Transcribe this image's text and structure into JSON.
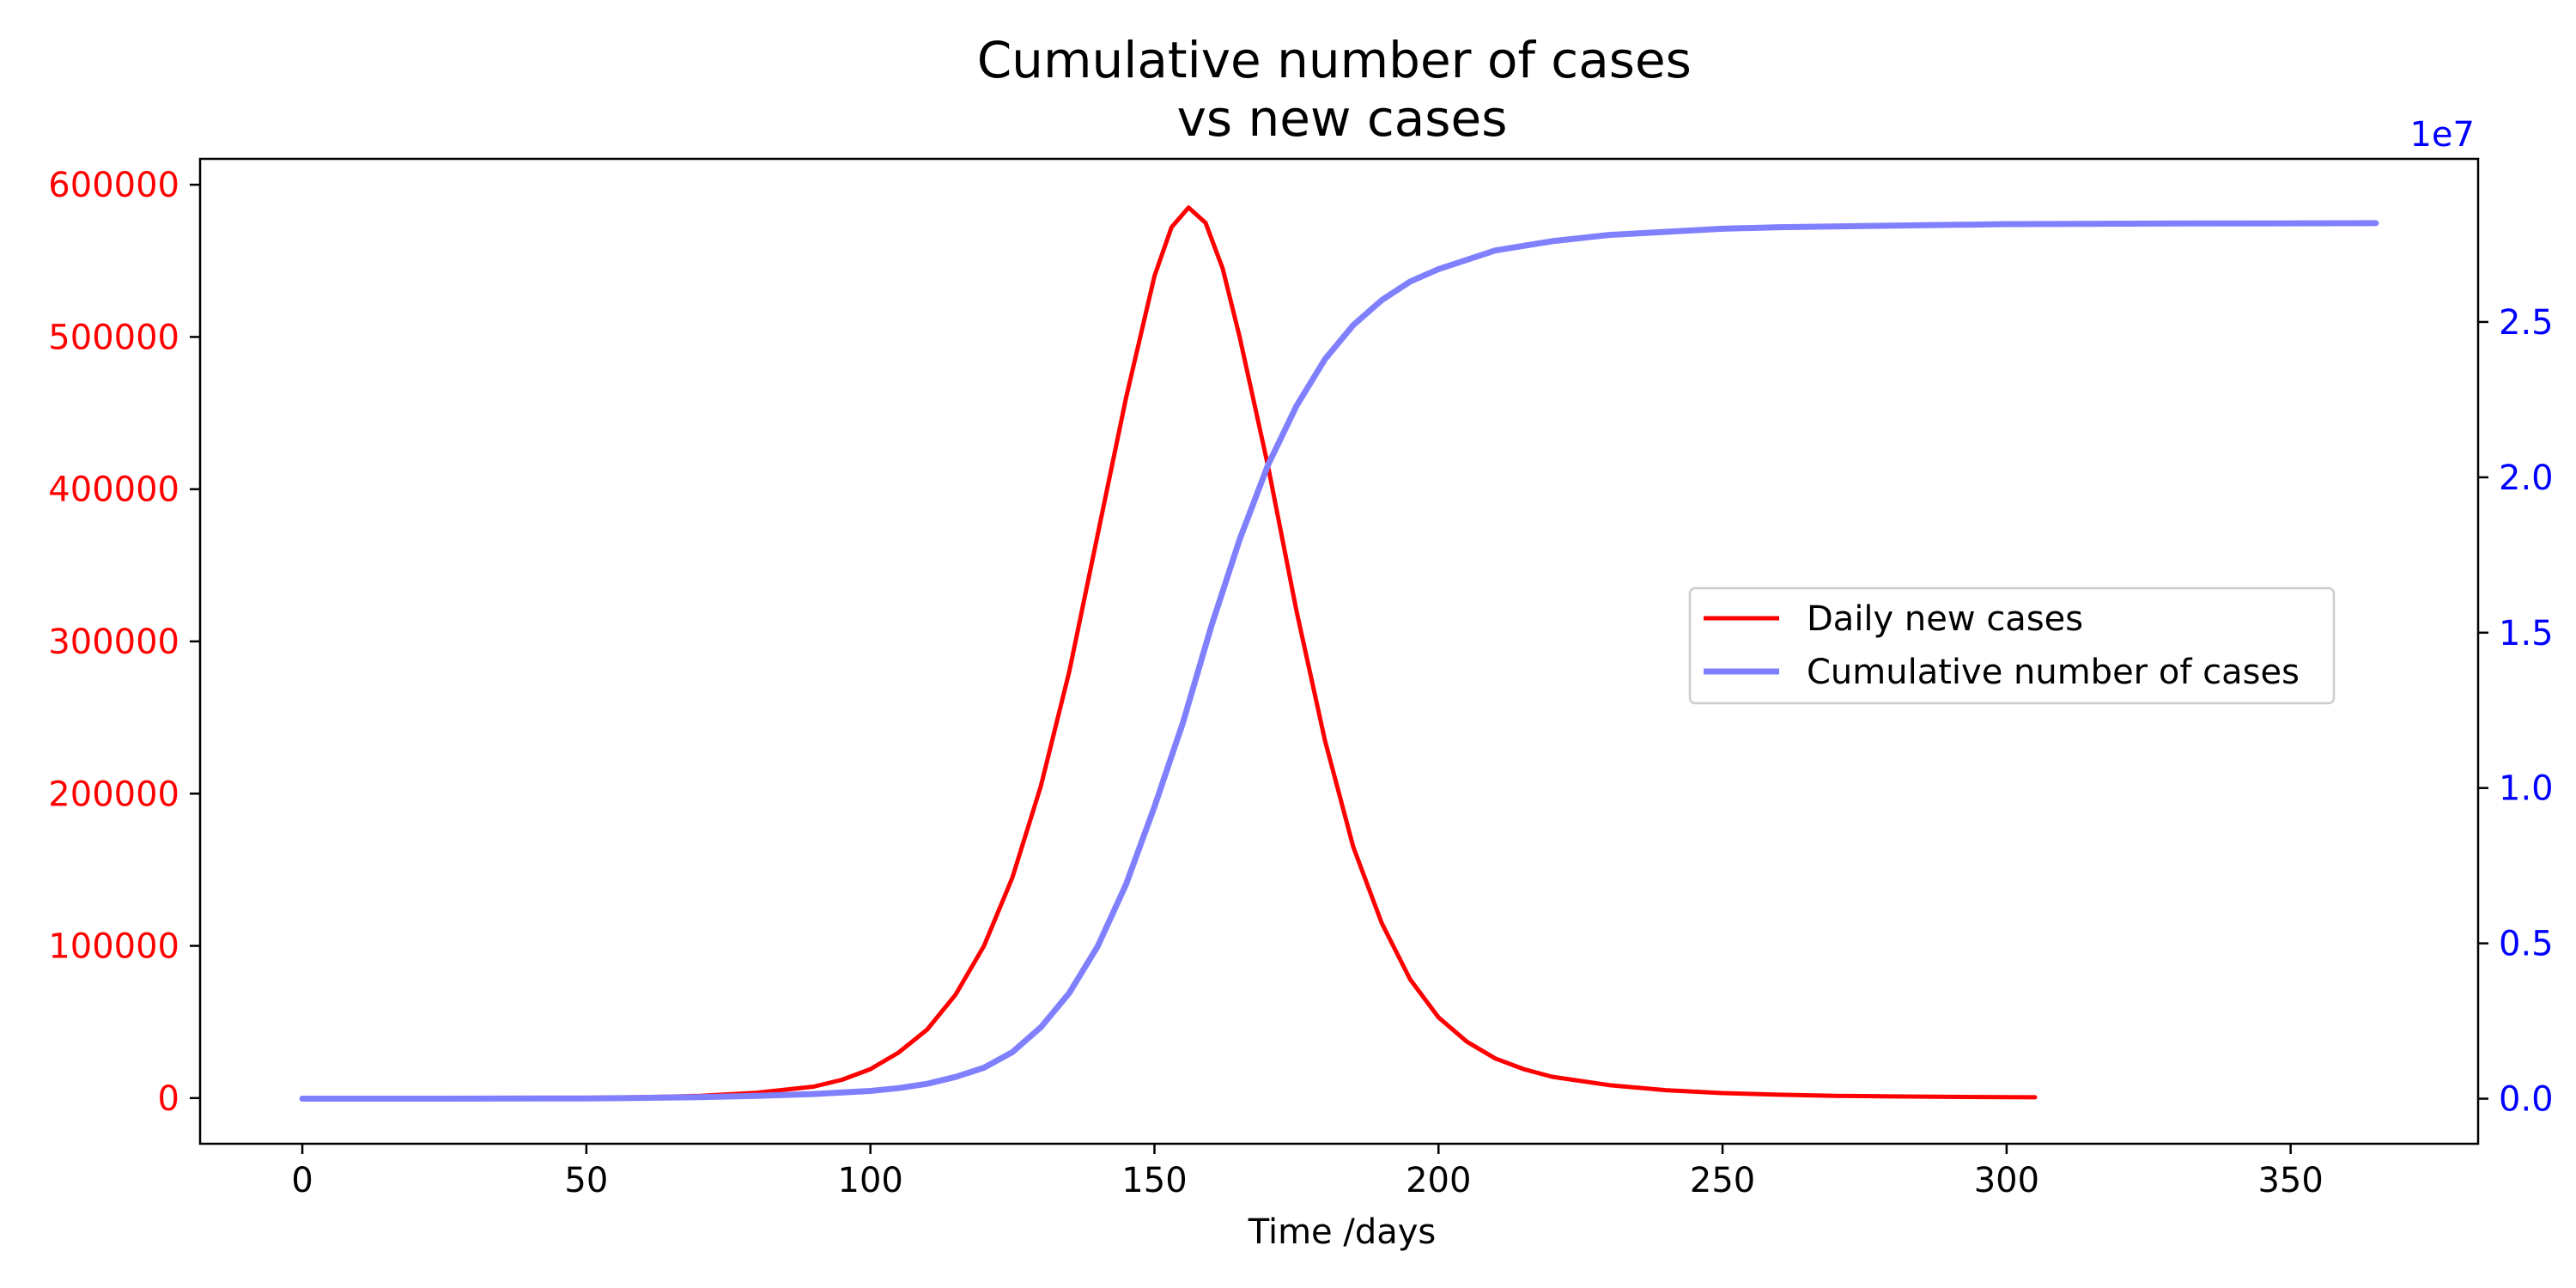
{
  "chart_data": {
    "type": "line",
    "title": "Cumulative number of cases\nvs new cases",
    "xlabel": "Time /days",
    "x_range": [
      -18,
      383
    ],
    "x_ticks": [
      0,
      50,
      100,
      150,
      200,
      250,
      300,
      350
    ],
    "left_axis": {
      "color": "#ff0000",
      "range": [
        -30000,
        617000
      ],
      "ticks": [
        0,
        100000,
        200000,
        300000,
        400000,
        500000,
        600000
      ],
      "tick_labels": [
        "0",
        "100000",
        "200000",
        "300000",
        "400000",
        "500000",
        "600000"
      ]
    },
    "right_axis": {
      "color": "#0000ff",
      "range": [
        -1450000,
        30250000
      ],
      "ticks": [
        0,
        5000000,
        10000000,
        15000000,
        20000000,
        25000000
      ],
      "tick_labels": [
        "0.0",
        "0.5",
        "1.0",
        "1.5",
        "2.0",
        "2.5"
      ],
      "offset_text": "1e7"
    },
    "series": [
      {
        "name": "Daily new cases",
        "axis": "left",
        "color": "#ff0000",
        "x": [
          0,
          25,
          50,
          60,
          70,
          80,
          90,
          95,
          100,
          105,
          110,
          115,
          120,
          125,
          130,
          135,
          140,
          145,
          150,
          153,
          156,
          159,
          162,
          165,
          170,
          175,
          180,
          185,
          190,
          195,
          200,
          205,
          210,
          215,
          220,
          230,
          240,
          250,
          260,
          270,
          280,
          290,
          300,
          305
        ],
        "y": [
          0,
          0,
          200,
          600,
          1500,
          3500,
          7500,
          12000,
          19000,
          30000,
          45000,
          68000,
          100000,
          145000,
          205000,
          280000,
          370000,
          460000,
          540000,
          572000,
          585000,
          575000,
          545000,
          500000,
          415000,
          320000,
          235000,
          165000,
          115000,
          78000,
          53000,
          37000,
          26000,
          19000,
          14000,
          8500,
          5200,
          3300,
          2200,
          1500,
          1100,
          800,
          600,
          500
        ]
      },
      {
        "name": "Cumulative number of cases",
        "axis": "right",
        "color": "#8080ff",
        "x": [
          0,
          25,
          50,
          60,
          70,
          80,
          90,
          100,
          105,
          110,
          115,
          120,
          125,
          130,
          135,
          140,
          145,
          150,
          155,
          160,
          165,
          170,
          175,
          180,
          185,
          190,
          195,
          200,
          210,
          220,
          230,
          240,
          250,
          260,
          280,
          300,
          330,
          365
        ],
        "y": [
          0,
          0,
          10000,
          25000,
          50000,
          90000,
          150000,
          250000,
          340000,
          480000,
          700000,
          1000000,
          1500000,
          2300000,
          3400000,
          4900000,
          6900000,
          9400000,
          12100000,
          15200000,
          18000000,
          20400000,
          22300000,
          23800000,
          24900000,
          25700000,
          26300000,
          26700000,
          27300000,
          27600000,
          27800000,
          27900000,
          28000000,
          28050000,
          28100000,
          28150000,
          28170000,
          28180000
        ]
      }
    ],
    "legend": {
      "placement": "center-right",
      "entries": [
        "Daily new cases",
        "Cumulative number of cases"
      ]
    },
    "grid": false
  }
}
